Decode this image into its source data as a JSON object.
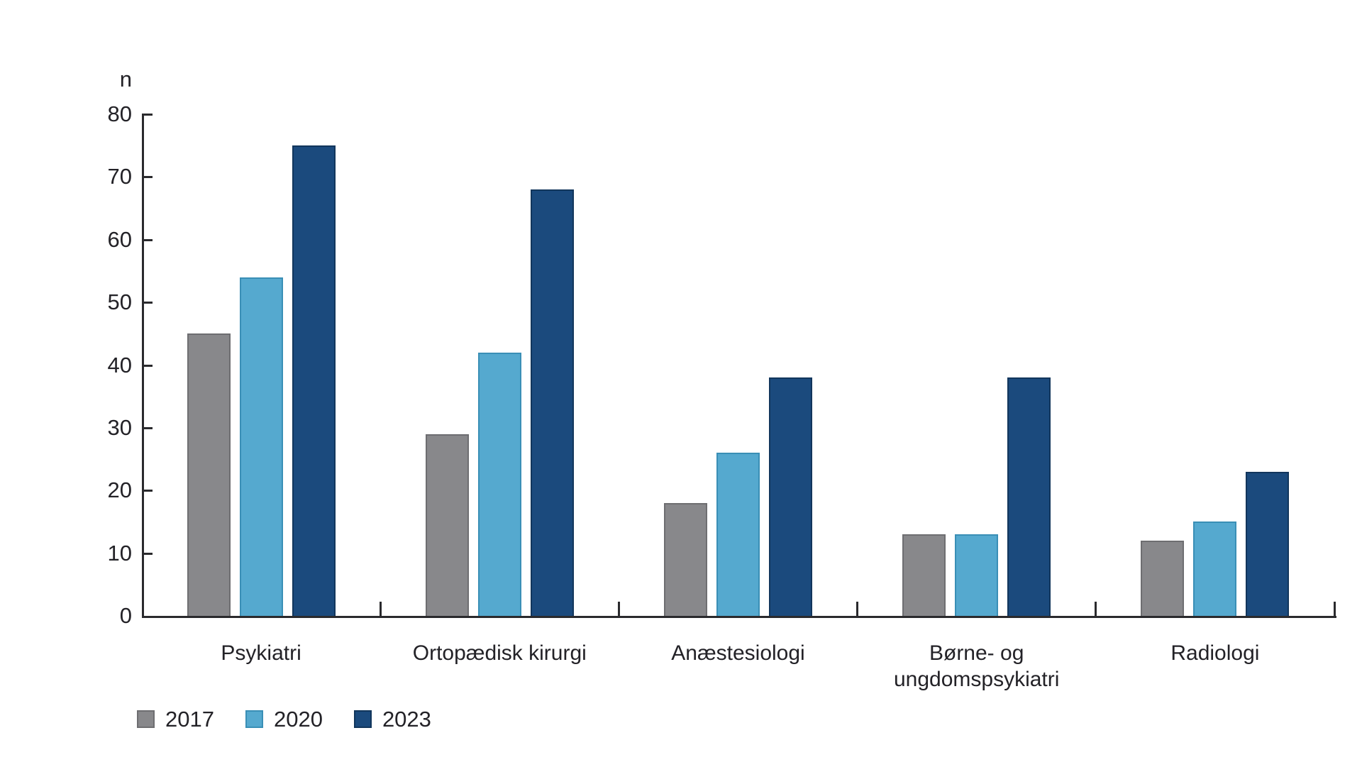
{
  "chart_data": {
    "type": "bar",
    "title": "",
    "ylabel": "n",
    "xlabel": "",
    "ylim": [
      0,
      80
    ],
    "yticks": [
      0,
      10,
      20,
      30,
      40,
      50,
      60,
      70,
      80
    ],
    "grid": false,
    "legend_position": "bottom-left",
    "categories": [
      "Psykiatri",
      "Ortopædisk kirurgi",
      "Anæstesiologi",
      "Børne- og\nungdomspsykiatri",
      "Radiologi"
    ],
    "series": [
      {
        "name": "2017",
        "values": [
          45,
          29,
          18,
          13,
          12
        ],
        "fill": "#88888b",
        "border": "#6e6e71"
      },
      {
        "name": "2020",
        "values": [
          54,
          42,
          26,
          13,
          15
        ],
        "fill": "#55a9cf",
        "border": "#3a8fb6"
      },
      {
        "name": "2023",
        "values": [
          75,
          68,
          38,
          38,
          23
        ],
        "fill": "#1b4a7d",
        "border": "#12365c"
      }
    ],
    "colors": {
      "axis": "#2a2a2d",
      "text": "#232227",
      "background": "#ffffff"
    }
  }
}
